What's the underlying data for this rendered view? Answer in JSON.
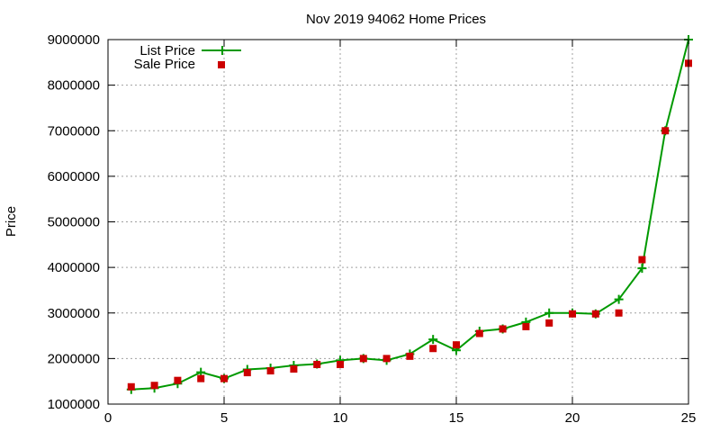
{
  "chart_data": {
    "type": "line",
    "title": "Nov 2019 94062 Home Prices",
    "xlabel": "",
    "ylabel": "Price",
    "xlim": [
      0,
      25
    ],
    "ylim": [
      1000000,
      9000000
    ],
    "x_ticks": [
      0,
      5,
      10,
      15,
      20,
      25
    ],
    "y_ticks": [
      1000000,
      2000000,
      3000000,
      4000000,
      5000000,
      6000000,
      7000000,
      8000000,
      9000000
    ],
    "grid": true,
    "legend_position": "top-left",
    "series": [
      {
        "name": "List Price",
        "style": "line-with-plus-markers",
        "color": "#009900",
        "x": [
          1,
          2,
          3,
          4,
          5,
          6,
          7,
          8,
          9,
          10,
          11,
          12,
          13,
          14,
          15,
          16,
          17,
          18,
          19,
          20,
          21,
          22,
          23,
          24,
          25
        ],
        "values": [
          1320000,
          1350000,
          1450000,
          1700000,
          1560000,
          1760000,
          1790000,
          1850000,
          1880000,
          1960000,
          2000000,
          1960000,
          2100000,
          2420000,
          2180000,
          2600000,
          2650000,
          2800000,
          3000000,
          3000000,
          2980000,
          3300000,
          3980000,
          7000000,
          9000000
        ]
      },
      {
        "name": "Sale Price",
        "style": "square-markers",
        "color": "#cc0000",
        "x": [
          1,
          2,
          3,
          4,
          5,
          6,
          7,
          8,
          9,
          10,
          11,
          12,
          13,
          14,
          15,
          16,
          17,
          18,
          19,
          20,
          21,
          22,
          23,
          24,
          25
        ],
        "values": [
          1380000,
          1410000,
          1520000,
          1560000,
          1560000,
          1690000,
          1730000,
          1770000,
          1870000,
          1870000,
          2000000,
          2000000,
          2050000,
          2220000,
          2300000,
          2550000,
          2650000,
          2700000,
          2780000,
          2980000,
          2980000,
          3000000,
          4170000,
          7000000,
          8480000
        ]
      }
    ]
  }
}
